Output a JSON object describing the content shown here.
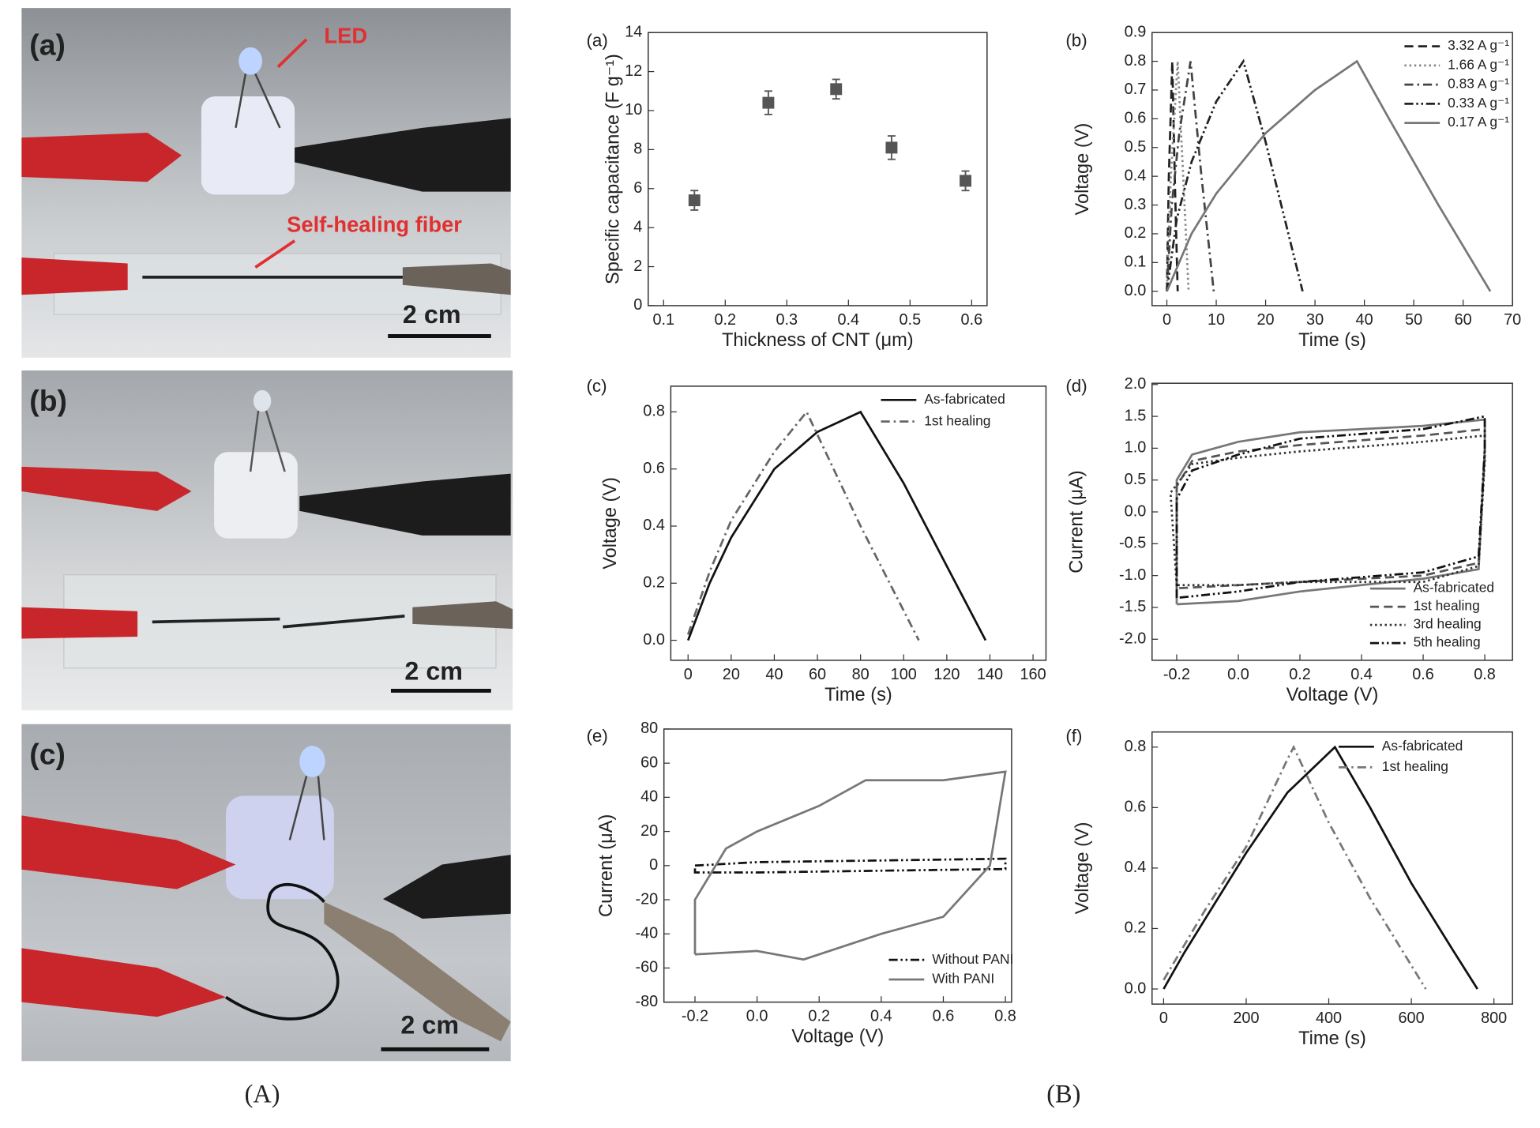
{
  "photo_panels": [
    {
      "label": "(a)",
      "led": "LED",
      "fiber": "Self-healing fiber",
      "scale": "2 cm"
    },
    {
      "label": "(b)",
      "scale": "2 cm"
    },
    {
      "label": "(c)",
      "scale": "2 cm"
    }
  ],
  "group_labels": [
    "(A)",
    "(B)"
  ],
  "chart_data": [
    {
      "type": "scatter",
      "label": "(a)",
      "x_label": "Thickness of CNT (μm)",
      "y_label": "Specific capacitance (F g⁻¹)",
      "xlim": [
        0.075,
        0.625
      ],
      "ylim": [
        0,
        14
      ],
      "xticks": [
        0.1,
        0.2,
        0.3,
        0.4,
        0.5,
        0.6
      ],
      "yticks": [
        0,
        2,
        4,
        6,
        8,
        10,
        12,
        14
      ],
      "series": [
        {
          "color": "#555555",
          "x": [
            0.15,
            0.27,
            0.38,
            0.47,
            0.59
          ],
          "values": [
            5.4,
            10.4,
            11.1,
            8.1,
            6.4
          ],
          "errors": [
            0.5,
            0.6,
            0.5,
            0.6,
            0.5
          ]
        }
      ]
    },
    {
      "type": "line",
      "label": "(b)",
      "x_label": "Time (s)",
      "y_label": "Voltage (V)",
      "legend": "upper right",
      "xlim": [
        -3,
        70
      ],
      "ylim": [
        -0.05,
        0.9
      ],
      "xticks": [
        0,
        10,
        20,
        30,
        40,
        50,
        60,
        70
      ],
      "yticks": [
        {
          "value": 0,
          "label": "0.0"
        },
        0.1,
        0.2,
        0.3,
        0.4,
        0.5,
        0.6,
        0.7,
        0.8,
        0.9
      ],
      "series": [
        {
          "name": "3.32 A g⁻¹",
          "color": "#222222",
          "dash": "dash",
          "x": [
            0,
            0.4,
            1.1,
            1.6,
            2.2
          ],
          "values": [
            0,
            0.4,
            0.8,
            0.4,
            0
          ]
        },
        {
          "name": "1.66 A g⁻¹",
          "color": "#888888",
          "dash": "dot",
          "x": [
            0,
            0.8,
            2.2,
            3.3,
            4.4
          ],
          "values": [
            0,
            0.4,
            0.8,
            0.4,
            0
          ]
        },
        {
          "name": "0.83 A g⁻¹",
          "color": "#444444",
          "dash": "dashdot",
          "x": [
            0,
            1,
            2.5,
            4.8,
            7,
            9.5
          ],
          "values": [
            0,
            0.3,
            0.55,
            0.8,
            0.4,
            0
          ]
        },
        {
          "name": "0.33 A g⁻¹",
          "color": "#222222",
          "dash": "dashdotdot",
          "x": [
            0,
            2,
            5,
            10,
            15.5,
            20,
            27.5
          ],
          "values": [
            0,
            0.25,
            0.45,
            0.66,
            0.8,
            0.52,
            0
          ]
        },
        {
          "name": "0.17 A g⁻¹",
          "color": "#777777",
          "dash": "solid",
          "x": [
            0,
            5,
            10,
            20,
            30,
            38.5,
            45,
            55,
            65.5
          ],
          "values": [
            0,
            0.2,
            0.34,
            0.55,
            0.7,
            0.8,
            0.6,
            0.3,
            0
          ]
        }
      ]
    },
    {
      "type": "line",
      "label": "(c)",
      "x_label": "Time (s)",
      "y_label": "Voltage (V)",
      "legend": "upper right",
      "xlim": [
        -8,
        166
      ],
      "ylim": [
        -0.07,
        0.89
      ],
      "xticks": [
        0,
        20,
        40,
        60,
        80,
        100,
        120,
        140,
        160
      ],
      "yticks": [
        {
          "value": 0,
          "label": "0.0"
        },
        0.2,
        0.4,
        0.6,
        0.8
      ],
      "series": [
        {
          "name": "As-fabricated",
          "color": "#111111",
          "dash": "solid",
          "x": [
            0,
            10,
            20,
            40,
            60,
            80,
            100,
            120,
            138
          ],
          "values": [
            0,
            0.2,
            0.36,
            0.6,
            0.73,
            0.8,
            0.55,
            0.26,
            0
          ]
        },
        {
          "name": "1st healing",
          "color": "#666666",
          "dash": "dashdot",
          "x": [
            0,
            10,
            20,
            40,
            55,
            80,
            107
          ],
          "values": [
            0.02,
            0.24,
            0.42,
            0.66,
            0.8,
            0.4,
            0
          ]
        }
      ]
    },
    {
      "type": "line",
      "label": "(d)",
      "x_label": "Voltage (V)",
      "y_label": "Current (μA)",
      "legend": "lower right",
      "xlim": [
        -0.28,
        0.89
      ],
      "ylim": [
        -2.33,
        2.02
      ],
      "xticks": [
        -0.2,
        {
          "value": 0,
          "label": "0.0"
        },
        0.2,
        0.4,
        0.6,
        0.8
      ],
      "yticks": [
        {
          "value": -2,
          "label": "-2.0"
        },
        -1.5,
        {
          "value": -1,
          "label": "-1.0"
        },
        -0.5,
        {
          "value": 0,
          "label": "0.0"
        },
        0.5,
        {
          "value": 1,
          "label": "1.0"
        },
        1.5,
        {
          "value": 2,
          "label": "2.0"
        }
      ],
      "series": [
        {
          "name": "As-fabricated",
          "color": "#777777",
          "dash": "solid",
          "x": [
            -0.2,
            -0.2,
            -0.15,
            0,
            0.2,
            0.6,
            0.8,
            0.8,
            0.78,
            0.6,
            0.2,
            0,
            -0.2
          ],
          "values": [
            -1.45,
            0.5,
            0.9,
            1.1,
            1.25,
            1.35,
            1.45,
            1,
            -0.9,
            -1.05,
            -1.25,
            -1.4,
            -1.45
          ]
        },
        {
          "name": "1st healing",
          "color": "#555555",
          "dash": "dash",
          "x": [
            -0.2,
            -0.2,
            -0.15,
            0,
            0.2,
            0.6,
            0.8,
            0.8,
            0.78,
            0.6,
            0.2,
            0,
            -0.2
          ],
          "values": [
            -1.2,
            0.4,
            0.8,
            0.95,
            1.05,
            1.2,
            1.3,
            0.9,
            -0.8,
            -1,
            -1.1,
            -1.15,
            -1.2
          ]
        },
        {
          "name": "3rd healing",
          "color": "#333333",
          "dash": "dot",
          "x": [
            -0.2,
            -0.22,
            -0.15,
            0,
            0.2,
            0.6,
            0.8,
            0.8,
            0.78,
            0.6,
            0.2,
            0,
            -0.2
          ],
          "values": [
            -1.15,
            0.3,
            0.75,
            0.85,
            0.95,
            1.1,
            1.2,
            0.8,
            -0.85,
            -1.1,
            -1.1,
            -1.15,
            -1.15
          ]
        },
        {
          "name": "5th healing",
          "color": "#111111",
          "dash": "dashdotdot",
          "x": [
            -0.2,
            -0.2,
            -0.15,
            0,
            0.2,
            0.6,
            0.8,
            0.8,
            0.78,
            0.6,
            0.2,
            0,
            -0.2
          ],
          "values": [
            -1.35,
            0.2,
            0.65,
            0.9,
            1.15,
            1.3,
            1.5,
            1,
            -0.7,
            -0.95,
            -1.1,
            -1.25,
            -1.35
          ]
        }
      ]
    },
    {
      "type": "line",
      "label": "(e)",
      "x_label": "Voltage (V)",
      "y_label": "Current (μA)",
      "legend": "lower right",
      "xlim": [
        -0.3,
        0.82
      ],
      "ylim": [
        -80,
        80
      ],
      "xticks": [
        -0.2,
        {
          "value": 0,
          "label": "0.0"
        },
        0.2,
        0.4,
        0.6,
        0.8
      ],
      "yticks": [
        -80,
        -60,
        -40,
        -20,
        0,
        20,
        40,
        60,
        80
      ],
      "series": [
        {
          "name": "Without PANI",
          "color": "#111111",
          "dash": "dashdotdot",
          "x": [
            -0.2,
            0,
            0.4,
            0.8,
            0.8,
            0.4,
            0,
            -0.2,
            -0.2
          ],
          "values": [
            0,
            2,
            3,
            4,
            -2,
            -3,
            -4,
            -4,
            0
          ]
        },
        {
          "name": "With PANI",
          "color": "#777777",
          "dash": "solid",
          "x": [
            -0.2,
            -0.2,
            -0.1,
            0,
            0.2,
            0.35,
            0.6,
            0.8,
            0.75,
            0.6,
            0.4,
            0.15,
            0,
            -0.2
          ],
          "values": [
            -52,
            -20,
            10,
            20,
            35,
            50,
            50,
            55,
            0,
            -30,
            -40,
            -55,
            -50,
            -52
          ]
        }
      ]
    },
    {
      "type": "line",
      "label": "(f)",
      "x_label": "Time (s)",
      "y_label": "Voltage (V)",
      "legend": "upper right",
      "xlim": [
        -28,
        845
      ],
      "ylim": [
        -0.05,
        0.85
      ],
      "xticks": [
        0,
        200,
        400,
        600,
        800
      ],
      "yticks": [
        {
          "value": 0,
          "label": "0.0"
        },
        0.2,
        0.4,
        0.6,
        0.8
      ],
      "series": [
        {
          "name": "As-fabricated",
          "color": "#111111",
          "dash": "solid",
          "x": [
            0,
            50,
            100,
            200,
            300,
            415,
            500,
            600,
            700,
            760
          ],
          "values": [
            0,
            0.12,
            0.23,
            0.45,
            0.65,
            0.8,
            0.6,
            0.35,
            0.13,
            0
          ]
        },
        {
          "name": "1st healing",
          "color": "#777777",
          "dash": "dashdot",
          "x": [
            0,
            100,
            200,
            300,
            315,
            400,
            500,
            635
          ],
          "values": [
            0.03,
            0.26,
            0.47,
            0.76,
            0.8,
            0.55,
            0.3,
            0
          ]
        }
      ]
    }
  ]
}
